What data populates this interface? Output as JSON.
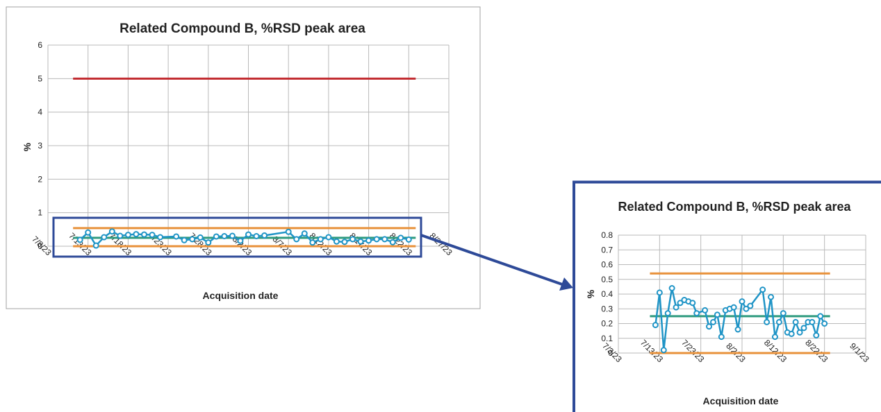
{
  "colors": {
    "series": "#1f94c6",
    "mean": "#2e9a7e",
    "limits": "#e8913a",
    "spec": "#c22a2f",
    "highlight": "#2e4a98",
    "grid": "#b9b9b9"
  },
  "chart_data": [
    {
      "type": "line",
      "title": "Related Compound B, %RSD peak area",
      "xlabel": "Acquisition date",
      "ylabel": "%",
      "ylim": [
        0,
        6
      ],
      "yticks": [
        "0",
        "1",
        "2",
        "3",
        "4",
        "5",
        "6"
      ],
      "xlim": [
        "2023-07-08",
        "2023-08-27"
      ],
      "xticks": [
        "7/8/23",
        "7/13/23",
        "7/18/23",
        "7/23/23",
        "7/28/23",
        "8/2/23",
        "8/7/23",
        "8/12/23",
        "8/17/23",
        "8/22/23",
        "8/27/23"
      ],
      "grid": true,
      "reference_lines": [
        {
          "label": "spec",
          "y": 5.0,
          "color": "#c22a2f"
        },
        {
          "label": "upper",
          "y": 0.54,
          "color": "#e8913a"
        },
        {
          "label": "mean",
          "y": 0.25,
          "color": "#2e9a7e"
        },
        {
          "label": "lower",
          "y": 0.0,
          "color": "#e8913a"
        }
      ],
      "series": [
        {
          "x": [
            "2023-07-12",
            "2023-07-13",
            "2023-07-14",
            "2023-07-15",
            "2023-07-16",
            "2023-07-17",
            "2023-07-18",
            "2023-07-19",
            "2023-07-20",
            "2023-07-21",
            "2023-07-22",
            "2023-07-24",
            "2023-07-25",
            "2023-07-26",
            "2023-07-27",
            "2023-07-28",
            "2023-07-29",
            "2023-07-30",
            "2023-07-31",
            "2023-08-01",
            "2023-08-02",
            "2023-08-03",
            "2023-08-04",
            "2023-08-07",
            "2023-08-08",
            "2023-08-09",
            "2023-08-10",
            "2023-08-11",
            "2023-08-12",
            "2023-08-13",
            "2023-08-14",
            "2023-08-15",
            "2023-08-16",
            "2023-08-17",
            "2023-08-18",
            "2023-08-19",
            "2023-08-20",
            "2023-08-21",
            "2023-08-22"
          ],
          "y": [
            0.19,
            0.41,
            0.02,
            0.27,
            0.44,
            0.31,
            0.34,
            0.36,
            0.35,
            0.34,
            0.27,
            0.29,
            0.18,
            0.21,
            0.26,
            0.11,
            0.29,
            0.3,
            0.31,
            0.16,
            0.35,
            0.3,
            0.32,
            0.43,
            0.21,
            0.38,
            0.11,
            0.21,
            0.27,
            0.14,
            0.13,
            0.21,
            0.14,
            0.17,
            0.21,
            0.21,
            0.12,
            0.25,
            0.2
          ]
        }
      ]
    },
    {
      "type": "line",
      "title": "Related Compound B, %RSD peak area",
      "xlabel": "Acquisition date",
      "ylabel": "%",
      "ylim": [
        0,
        0.8
      ],
      "yticks": [
        "0",
        "0.1",
        "0.2",
        "0.3",
        "0.4",
        "0.5",
        "0.6",
        "0.7",
        "0.8"
      ],
      "xlim": [
        "2023-07-03",
        "2023-09-01"
      ],
      "xticks": [
        "7/3/23",
        "7/13/23",
        "7/23/23",
        "8/2/23",
        "8/12/23",
        "8/22/23",
        "9/1/23"
      ],
      "grid": true,
      "reference_lines": [
        {
          "label": "upper",
          "y": 0.54,
          "color": "#e8913a"
        },
        {
          "label": "mean",
          "y": 0.25,
          "color": "#2e9a7e"
        },
        {
          "label": "lower",
          "y": 0.0,
          "color": "#e8913a"
        }
      ],
      "series": [
        {
          "x": [
            "2023-07-12",
            "2023-07-13",
            "2023-07-14",
            "2023-07-15",
            "2023-07-16",
            "2023-07-17",
            "2023-07-18",
            "2023-07-19",
            "2023-07-20",
            "2023-07-21",
            "2023-07-22",
            "2023-07-24",
            "2023-07-25",
            "2023-07-26",
            "2023-07-27",
            "2023-07-28",
            "2023-07-29",
            "2023-07-30",
            "2023-07-31",
            "2023-08-01",
            "2023-08-02",
            "2023-08-03",
            "2023-08-04",
            "2023-08-07",
            "2023-08-08",
            "2023-08-09",
            "2023-08-10",
            "2023-08-11",
            "2023-08-12",
            "2023-08-13",
            "2023-08-14",
            "2023-08-15",
            "2023-08-16",
            "2023-08-17",
            "2023-08-18",
            "2023-08-19",
            "2023-08-20",
            "2023-08-21",
            "2023-08-22"
          ],
          "y": [
            0.19,
            0.41,
            0.02,
            0.27,
            0.44,
            0.31,
            0.34,
            0.36,
            0.35,
            0.34,
            0.27,
            0.29,
            0.18,
            0.21,
            0.26,
            0.11,
            0.29,
            0.3,
            0.31,
            0.16,
            0.35,
            0.3,
            0.32,
            0.43,
            0.21,
            0.38,
            0.11,
            0.21,
            0.27,
            0.14,
            0.13,
            0.21,
            0.14,
            0.17,
            0.21,
            0.21,
            0.12,
            0.25,
            0.2
          ]
        }
      ]
    }
  ]
}
